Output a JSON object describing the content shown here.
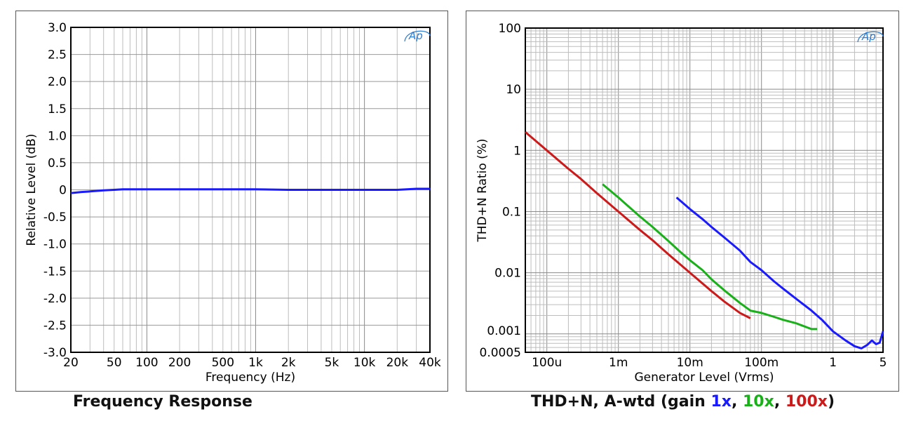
{
  "colors": {
    "blue": "#1a1aff",
    "green": "#19b019",
    "red": "#cc1a1a",
    "logo": "#2a7bd4"
  },
  "logo_text": "Ap",
  "captions": {
    "left": "Frequency Response",
    "right_prefix": "THD+N, A-wtd (gain ",
    "gain_1x": "1x",
    "gain_10x": "10x",
    "gain_100x": "100x",
    "sep": ", ",
    "right_suffix": ")"
  },
  "chart_data": [
    {
      "type": "line",
      "title": "Frequency Response",
      "xlabel": "Frequency (Hz)",
      "ylabel": "Relative Level (dB)",
      "xscale": "log",
      "xlim": [
        20,
        40000
      ],
      "ylim": [
        -3.0,
        3.0
      ],
      "grid": true,
      "x_ticks": [
        20,
        50,
        100,
        200,
        500,
        1000,
        2000,
        5000,
        10000,
        20000,
        40000
      ],
      "x_tick_labels": [
        "20",
        "50",
        "100",
        "200",
        "500",
        "1k",
        "2k",
        "5k",
        "10k",
        "20k",
        "40k"
      ],
      "y_ticks": [
        3.0,
        2.5,
        2.0,
        1.5,
        1.0,
        0.5,
        0,
        -0.5,
        -1.0,
        -1.5,
        -2.0,
        -2.5,
        -3.0
      ],
      "y_tick_labels": [
        "3.0",
        "2.5",
        "2.0",
        "1.5",
        "1.0",
        "0.5",
        "0",
        "-0.5",
        "-1.0",
        "-1.5",
        "-2.0",
        "-2.5",
        "-3.0"
      ],
      "series": [
        {
          "color": "#1a1aff",
          "x": [
            20,
            25,
            30,
            40,
            50,
            60,
            100,
            200,
            500,
            1000,
            2000,
            5000,
            10000,
            20000,
            30000,
            40000
          ],
          "y": [
            -0.06,
            -0.04,
            -0.03,
            -0.01,
            0.0,
            0.01,
            0.01,
            0.01,
            0.01,
            0.01,
            0.0,
            0.0,
            0.0,
            0.0,
            0.02,
            0.02
          ]
        }
      ]
    },
    {
      "type": "line",
      "title": "THD+N, A-wtd (gain 1x, 10x, 100x)",
      "xlabel": "Generator Level (Vrms)",
      "ylabel": "THD+N Ratio (%)",
      "xscale": "log",
      "yscale": "log",
      "xlim": [
        5e-05,
        5
      ],
      "ylim": [
        0.0005,
        100
      ],
      "grid": true,
      "x_ticks": [
        0.0001,
        0.001,
        0.01,
        0.1,
        1,
        5
      ],
      "x_tick_labels": [
        "100u",
        "1m",
        "10m",
        "100m",
        "1",
        "5"
      ],
      "y_ticks": [
        100,
        10,
        1,
        0.1,
        0.01,
        0.001,
        0.0005
      ],
      "y_tick_labels": [
        "100",
        "10",
        "1",
        "0.1",
        "0.01",
        "0.001",
        "0.0005"
      ],
      "series": [
        {
          "name": "1x",
          "color": "#1a1aff",
          "x": [
            0.0065,
            0.01,
            0.015,
            0.02,
            0.03,
            0.05,
            0.07,
            0.1,
            0.15,
            0.2,
            0.3,
            0.5,
            0.7,
            1.0,
            1.5,
            2.0,
            2.5,
            3.0,
            3.5,
            4.0,
            4.5,
            5.0
          ],
          "y": [
            0.17,
            0.11,
            0.075,
            0.056,
            0.038,
            0.023,
            0.015,
            0.011,
            0.0072,
            0.0055,
            0.0038,
            0.0024,
            0.0017,
            0.0011,
            0.00078,
            0.00063,
            0.00058,
            0.00066,
            0.00078,
            0.00068,
            0.00072,
            0.0011
          ]
        },
        {
          "name": "10x",
          "color": "#19b019",
          "x": [
            0.0006,
            0.001,
            0.002,
            0.003,
            0.005,
            0.007,
            0.01,
            0.015,
            0.02,
            0.03,
            0.05,
            0.07,
            0.1,
            0.15,
            0.2,
            0.3,
            0.5,
            0.6
          ],
          "y": [
            0.28,
            0.17,
            0.083,
            0.056,
            0.033,
            0.023,
            0.016,
            0.011,
            0.0078,
            0.0052,
            0.0032,
            0.0024,
            0.0022,
            0.0019,
            0.0017,
            0.0015,
            0.0012,
            0.0012
          ]
        },
        {
          "name": "100x",
          "color": "#cc1a1a",
          "x": [
            5e-05,
            0.0001,
            0.0002,
            0.0003,
            0.0005,
            0.001,
            0.002,
            0.003,
            0.005,
            0.01,
            0.02,
            0.03,
            0.05,
            0.07
          ],
          "y": [
            2.0,
            1.0,
            0.5,
            0.34,
            0.2,
            0.1,
            0.05,
            0.034,
            0.02,
            0.01,
            0.005,
            0.0034,
            0.0022,
            0.0018
          ]
        }
      ]
    }
  ]
}
